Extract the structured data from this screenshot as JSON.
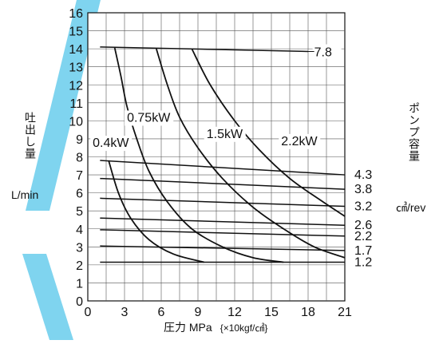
{
  "chart_data": {
    "type": "line",
    "xlabel": "圧力 MPa",
    "xlabel_note": "{×10kgf/㎠}",
    "ylabel": "吐出し量",
    "ylabel_unit": "L/min",
    "y2label": "ポンプ容量",
    "y2label_unit": "㎤/rev",
    "xlim": [
      0,
      21
    ],
    "ylim": [
      0,
      16
    ],
    "x_ticks": [
      "0",
      "3",
      "6",
      "9",
      "12",
      "15",
      "18",
      "21"
    ],
    "y_ticks": [
      "0",
      "1",
      "2",
      "3",
      "4",
      "5",
      "6",
      "7",
      "8",
      "9",
      "10",
      "11",
      "12",
      "13",
      "14",
      "15",
      "16"
    ],
    "grid": true,
    "displacement_lines": [
      {
        "name": "7.8",
        "points": [
          [
            1,
            14.1
          ],
          [
            18,
            13.85
          ]
        ]
      },
      {
        "name": "4.3",
        "points": [
          [
            1,
            7.8
          ],
          [
            21,
            7.0
          ]
        ]
      },
      {
        "name": "3.8",
        "points": [
          [
            1,
            6.8
          ],
          [
            21,
            6.2
          ]
        ]
      },
      {
        "name": "3.2",
        "points": [
          [
            1,
            5.7
          ],
          [
            21,
            5.25
          ]
        ]
      },
      {
        "name": "2.6",
        "points": [
          [
            1,
            4.6
          ],
          [
            21,
            4.2
          ]
        ]
      },
      {
        "name": "2.2",
        "points": [
          [
            1,
            3.95
          ],
          [
            21,
            3.6
          ]
        ]
      },
      {
        "name": "1.7",
        "points": [
          [
            1,
            3.05
          ],
          [
            21,
            2.8
          ]
        ]
      },
      {
        "name": "1.2",
        "points": [
          [
            1,
            2.15
          ],
          [
            21,
            2.15
          ]
        ]
      }
    ],
    "power_curves": [
      {
        "name": "0.4kW",
        "points": [
          [
            1.7,
            7.8
          ],
          [
            2.5,
            6.0
          ],
          [
            3.5,
            4.6
          ],
          [
            5.0,
            3.4
          ],
          [
            7.0,
            2.6
          ],
          [
            9.5,
            2.15
          ]
        ]
      },
      {
        "name": "0.75kW",
        "points": [
          [
            2.2,
            14.05
          ],
          [
            2.7,
            12.5
          ],
          [
            3.2,
            10.8
          ],
          [
            4.0,
            9.0
          ],
          [
            5.0,
            7.2
          ],
          [
            6.5,
            5.5
          ],
          [
            8.5,
            4.0
          ],
          [
            11.0,
            3.0
          ],
          [
            13.5,
            2.4
          ],
          [
            16.0,
            2.15
          ]
        ]
      },
      {
        "name": "1.5kW",
        "points": [
          [
            5.6,
            14.0
          ],
          [
            6.5,
            12.0
          ],
          [
            7.5,
            10.2
          ],
          [
            9.0,
            8.5
          ],
          [
            11.0,
            6.8
          ],
          [
            13.5,
            5.2
          ],
          [
            16.0,
            4.0
          ],
          [
            18.5,
            3.0
          ],
          [
            21.0,
            2.4
          ]
        ]
      },
      {
        "name": "2.2kW",
        "points": [
          [
            8.5,
            14.0
          ],
          [
            10.0,
            12.0
          ],
          [
            12.0,
            10.0
          ],
          [
            14.0,
            8.4
          ],
          [
            16.5,
            6.8
          ],
          [
            19.0,
            5.6
          ],
          [
            21.0,
            4.7
          ]
        ]
      }
    ],
    "power_labels": [
      "0.4kW",
      "0.75kW",
      "1.5kW",
      "2.2kW"
    ]
  },
  "colors": {
    "stripe": "#7fd4ef",
    "line": "#111111",
    "grid": "#555555"
  }
}
